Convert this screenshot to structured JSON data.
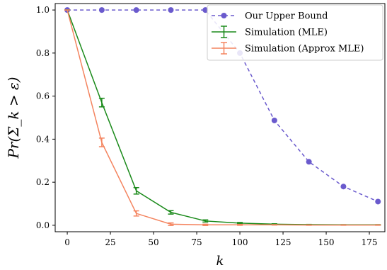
{
  "chart_data": {
    "type": "line",
    "xlabel": "k",
    "ylabel": "Pr(Σ_k > ε)",
    "xlim": [
      -7,
      184
    ],
    "ylim": [
      -0.03,
      1.03
    ],
    "xticks": [
      0,
      25,
      50,
      75,
      100,
      125,
      150,
      175
    ],
    "yticks": [
      0.0,
      0.2,
      0.4,
      0.6,
      0.8,
      1.0
    ],
    "grid": false,
    "legend_position": "top-right",
    "series": [
      {
        "name": "Our Upper Bound",
        "color": "#6a5acd",
        "style": "dashed",
        "marker": "circle",
        "x": [
          0,
          20,
          40,
          60,
          80,
          100,
          120,
          140,
          160,
          180
        ],
        "values": [
          1.0,
          1.0,
          1.0,
          1.0,
          1.0,
          0.8,
          0.487,
          0.295,
          0.18,
          0.11
        ]
      },
      {
        "name": "Simulation (MLE)",
        "color": "#1a8a1a",
        "style": "solid",
        "marker": "errorbar",
        "x": [
          0,
          20,
          40,
          60,
          80,
          100,
          120,
          140,
          160,
          180
        ],
        "values": [
          1.0,
          0.57,
          0.16,
          0.06,
          0.02,
          0.01,
          0.005,
          0.003,
          0.002,
          0.002
        ],
        "errors": [
          0.0,
          0.02,
          0.015,
          0.008,
          0.005,
          0.003,
          0.002,
          0.001,
          0.001,
          0.001
        ]
      },
      {
        "name": "Simulation (Approx MLE)",
        "color": "#f4845f",
        "style": "solid",
        "marker": "errorbar",
        "x": [
          0,
          20,
          40,
          60,
          80,
          100,
          120,
          140,
          160,
          180
        ],
        "values": [
          1.0,
          0.385,
          0.055,
          0.005,
          0.002,
          0.002,
          0.002,
          0.001,
          0.001,
          0.001
        ],
        "errors": [
          0.0,
          0.02,
          0.012,
          0.006,
          0.003,
          0.002,
          0.001,
          0.001,
          0.001,
          0.001
        ]
      }
    ]
  }
}
